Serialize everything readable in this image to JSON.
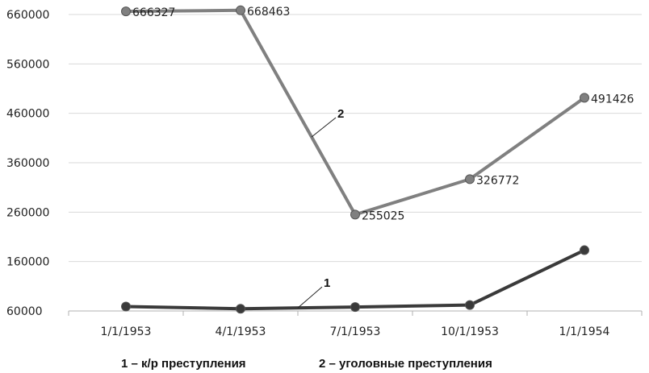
{
  "chart_data": {
    "type": "line",
    "categories": [
      "1/1/1953",
      "4/1/1953",
      "7/1/1953",
      "10/1/1953",
      "1/1/1954"
    ],
    "ylim": [
      60000,
      660000
    ],
    "yticks": [
      60000,
      160000,
      260000,
      360000,
      460000,
      560000,
      660000
    ],
    "grid": true,
    "series": [
      {
        "name": "1 – к/р преступления",
        "callout": "1",
        "color": "#3a3a3a",
        "values": [
          69000,
          64500,
          68000,
          72000,
          183000
        ],
        "labels": [
          "",
          "",
          "",
          "",
          ""
        ]
      },
      {
        "name": "2 – уголовные преступления",
        "callout": "2",
        "color": "#808080",
        "values": [
          666327,
          668463,
          255025,
          326772,
          491426
        ],
        "labels": [
          "666327",
          "668463",
          "255025",
          "326772",
          "491426"
        ]
      }
    ]
  }
}
